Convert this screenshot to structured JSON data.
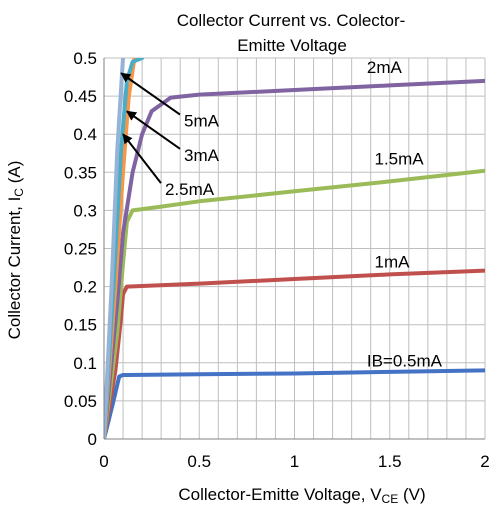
{
  "chart_data": {
    "type": "line",
    "title_line1": "Collector Current vs. Colector-",
    "title_line2": "Emitte  Voltage",
    "xlabel_main": "Collector-Emitte  Voltage, V",
    "xlabel_sub": "CE",
    "xlabel_tail": " (V)",
    "ylabel_main": "Collector Current, I",
    "ylabel_sub": "C",
    "ylabel_tail": " (A)",
    "xlim": [
      0,
      2
    ],
    "ylim": [
      0,
      0.5
    ],
    "x_ticks": [
      {
        "v": 0,
        "label": "0"
      },
      {
        "v": 0.5,
        "label": "0.5"
      },
      {
        "v": 1,
        "label": "1"
      },
      {
        "v": 1.5,
        "label": "1.5"
      },
      {
        "v": 2,
        "label": "2"
      }
    ],
    "y_ticks": [
      {
        "v": 0,
        "label": "0"
      },
      {
        "v": 0.05,
        "label": "0.05"
      },
      {
        "v": 0.1,
        "label": "0.1"
      },
      {
        "v": 0.15,
        "label": "0.15"
      },
      {
        "v": 0.2,
        "label": "0.2"
      },
      {
        "v": 0.25,
        "label": "0.25"
      },
      {
        "v": 0.3,
        "label": "0.3"
      },
      {
        "v": 0.35,
        "label": "0.35"
      },
      {
        "v": 0.4,
        "label": "0.4"
      },
      {
        "v": 0.45,
        "label": "0.45"
      },
      {
        "v": 0.5,
        "label": "0.5"
      }
    ],
    "grid": true,
    "series": [
      {
        "name": "IB=0.5mA",
        "color": "#4472C4",
        "points": [
          [
            0,
            0
          ],
          [
            0.05,
            0.05
          ],
          [
            0.08,
            0.082
          ],
          [
            0.1,
            0.084
          ],
          [
            0.5,
            0.085
          ],
          [
            1,
            0.086
          ],
          [
            1.5,
            0.088
          ],
          [
            2,
            0.09
          ]
        ]
      },
      {
        "name": "1mA",
        "color": "#C0504D",
        "points": [
          [
            0,
            0
          ],
          [
            0.06,
            0.09
          ],
          [
            0.09,
            0.16
          ],
          [
            0.1,
            0.19
          ],
          [
            0.12,
            0.2
          ],
          [
            0.5,
            0.204
          ],
          [
            1,
            0.21
          ],
          [
            1.5,
            0.216
          ],
          [
            2,
            0.221
          ]
        ]
      },
      {
        "name": "1.5mA",
        "color": "#9BBB59",
        "points": [
          [
            0,
            0
          ],
          [
            0.07,
            0.14
          ],
          [
            0.1,
            0.23
          ],
          [
            0.12,
            0.285
          ],
          [
            0.15,
            0.3
          ],
          [
            0.3,
            0.305
          ],
          [
            0.5,
            0.312
          ],
          [
            1,
            0.325
          ],
          [
            1.5,
            0.338
          ],
          [
            2,
            0.352
          ]
        ]
      },
      {
        "name": "2mA",
        "color": "#8064A2",
        "points": [
          [
            0,
            0
          ],
          [
            0.07,
            0.18
          ],
          [
            0.1,
            0.27
          ],
          [
            0.15,
            0.35
          ],
          [
            0.2,
            0.4
          ],
          [
            0.25,
            0.43
          ],
          [
            0.35,
            0.448
          ],
          [
            0.5,
            0.452
          ],
          [
            1,
            0.458
          ],
          [
            1.5,
            0.464
          ],
          [
            2,
            0.47
          ]
        ]
      },
      {
        "name": "2.5mA",
        "color": "#F79646",
        "points": [
          [
            0,
            0
          ],
          [
            0.06,
            0.2
          ],
          [
            0.1,
            0.35
          ],
          [
            0.13,
            0.45
          ],
          [
            0.16,
            0.5
          ]
        ]
      },
      {
        "name": "3mA",
        "color": "#4BACC6",
        "points": [
          [
            0,
            0
          ],
          [
            0.05,
            0.2
          ],
          [
            0.09,
            0.38
          ],
          [
            0.12,
            0.47
          ],
          [
            0.15,
            0.495
          ],
          [
            0.2,
            0.5
          ]
        ]
      },
      {
        "name": "5mA",
        "color": "#95B3D7",
        "points": [
          [
            0,
            0
          ],
          [
            0.04,
            0.2
          ],
          [
            0.07,
            0.38
          ],
          [
            0.1,
            0.5
          ]
        ]
      }
    ],
    "labels": [
      {
        "text": "2mA",
        "x": 1.38,
        "y": 0.48
      },
      {
        "text": "1.5mA",
        "x": 1.42,
        "y": 0.36
      },
      {
        "text": "1mA",
        "x": 1.42,
        "y": 0.225
      },
      {
        "text": "IB=0.5mA",
        "x": 1.38,
        "y": 0.095
      },
      {
        "text": "5mA",
        "x": 0.42,
        "y": 0.41,
        "arrow_to": [
          0.09,
          0.48
        ]
      },
      {
        "text": "3mA",
        "x": 0.42,
        "y": 0.365,
        "arrow_to": [
          0.12,
          0.43
        ]
      },
      {
        "text": "2.5mA",
        "x": 0.32,
        "y": 0.32,
        "arrow_to": [
          0.1,
          0.4
        ]
      }
    ]
  }
}
